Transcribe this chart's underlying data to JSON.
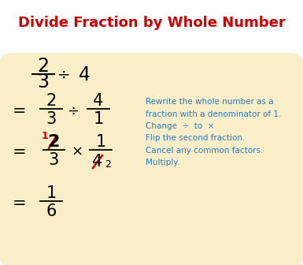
{
  "title": "Divide Fraction by Whole Number",
  "title_color": "#cc0000",
  "title_fontsize": 13,
  "bg_color": "#faeec8",
  "border_color": "#3a5dae",
  "math_color": "#000000",
  "blue_color": "#2879c0",
  "red_color": "#cc0000",
  "note1": "Rewrite the whole number as a\nfraction with a denominator of 1.",
  "note2": "Change  ÷  to  ×\nFlip the second fraction.\nCancel any common factors.\nMultiply."
}
